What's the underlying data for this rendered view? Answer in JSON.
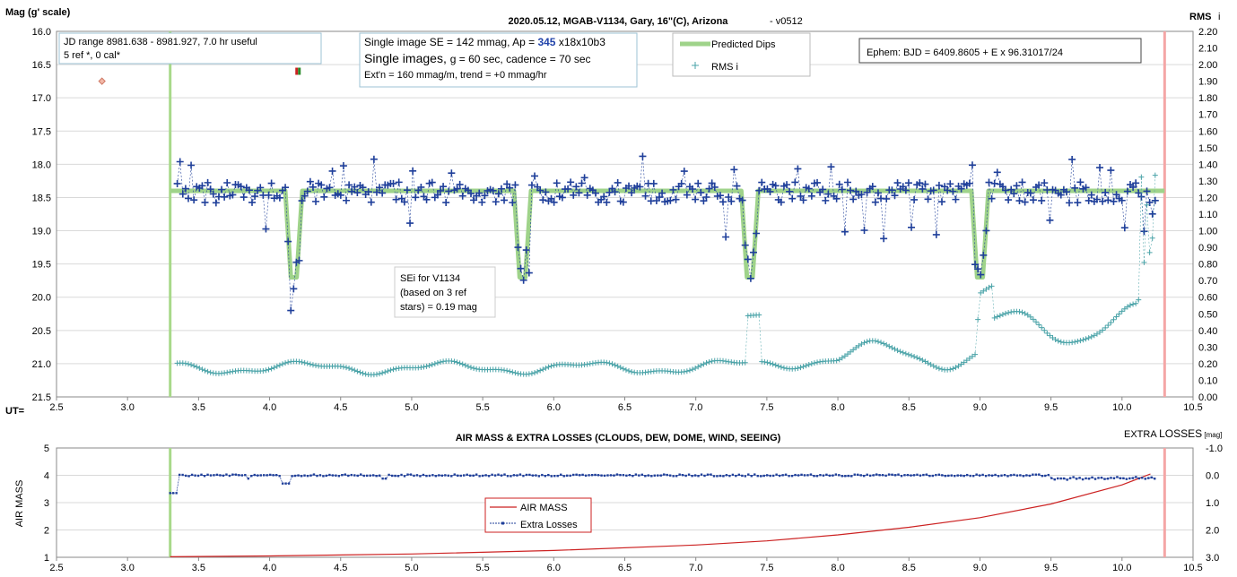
{
  "chart_data": [
    {
      "type": "scatter",
      "title": "2020.05.12, MGAB-V1134, Gary, 16\"(C), Arizona",
      "title_suffix": "- v0512",
      "ylabel": "Mag (g' scale)",
      "y2label": "RMS",
      "y2label_sub": "i",
      "xlabel": "UT=",
      "xlim": [
        2.5,
        10.5
      ],
      "ylim": [
        16.0,
        21.5
      ],
      "y_inverted": true,
      "y2lim": [
        0.0,
        2.2
      ],
      "x_ticks": [
        "2.5",
        "3.0",
        "3.5",
        "4.0",
        "4.5",
        "5.0",
        "5.5",
        "6.0",
        "6.5",
        "7.0",
        "7.5",
        "8.0",
        "8.5",
        "9.0",
        "9.5",
        "10.0",
        "10.5"
      ],
      "y_ticks": [
        "16.0",
        "16.5",
        "17.0",
        "17.5",
        "18.0",
        "18.5",
        "19.0",
        "19.5",
        "20.0",
        "20.5",
        "21.0",
        "21.5"
      ],
      "y2_ticks": [
        "2.20",
        "2.10",
        "2.00",
        "1.90",
        "1.80",
        "1.70",
        "1.60",
        "1.50",
        "1.40",
        "1.30",
        "1.20",
        "1.10",
        "1.00",
        "0.90",
        "0.80",
        "0.70",
        "0.60",
        "0.50",
        "0.40",
        "0.30",
        "0.20",
        "0.10",
        "0.00"
      ],
      "grid": "horizontal",
      "annotations": {
        "jd_box": [
          "JD range 8981.638 - 8981.927, 7.0 hr useful",
          "5 ref *, 0 cal*"
        ],
        "se_box_line1_pre": "Single image SE = 142 mmag, Ap = ",
        "se_box_line1_ap": "345",
        "se_box_line1_post": " x18x10b3",
        "se_box_line2_pre": "Single images, ",
        "se_box_line2_post": "g = 60 sec, cadence = 70 sec",
        "se_box_line3": "Ext'n = 160 mmag/m, trend = +0 mmag/hr",
        "sei_box": [
          "SEi for V1134",
          "(based on 3 ref",
          "stars) = 0.19 mag"
        ],
        "ephem_box": "Ephem: BJD = 6409.8605 + E x 96.31017/24"
      },
      "legend": {
        "placement": "top-center",
        "entries": [
          "Predicted Dips",
          "RMS i"
        ]
      },
      "markers": {
        "start_ut": 3.3,
        "end_ut": 10.3
      },
      "predicted_dips": {
        "baseline": 18.4,
        "depth_to": 19.7,
        "centers": [
          4.17,
          5.78,
          7.38,
          9.0
        ]
      },
      "series_note": "Dark blue + = V1134 magnitudes; light teal + = RMS i (right axis)",
      "colors": {
        "mag": "#1f3f9a",
        "rms": "#4aa3a8",
        "pred": "#9fd38a",
        "start": "#a8d98a",
        "end": "#f4a6a6"
      }
    },
    {
      "type": "line",
      "title": "AIR MASS & EXTRA LOSSES (CLOUDS, DEW, DOME, WIND, SEEING)",
      "ylabel": "AIR MASS",
      "y2label_pre": "EXTRA ",
      "y2label_main": "LOSSES",
      "y2label_sub": "[mag]",
      "xlim": [
        2.5,
        10.5
      ],
      "ylim": [
        1,
        5
      ],
      "y2lim": [
        -1.0,
        3.0
      ],
      "y2_inverted": true,
      "x_ticks": [
        "2.5",
        "3.0",
        "3.5",
        "4.0",
        "4.5",
        "5.0",
        "5.5",
        "6.0",
        "6.5",
        "7.0",
        "7.5",
        "8.0",
        "8.5",
        "9.0",
        "9.5",
        "10.0",
        "10.5"
      ],
      "y_ticks": [
        "1",
        "2",
        "3",
        "4",
        "5"
      ],
      "y2_ticks": [
        "-1.0",
        "0.0",
        "1.0",
        "2.0",
        "3.0"
      ],
      "series": [
        {
          "name": "AIR MASS",
          "x": [
            3.3,
            4.0,
            5.0,
            6.0,
            7.0,
            7.5,
            8.0,
            8.5,
            9.0,
            9.5,
            10.0,
            10.2
          ],
          "y": [
            1.02,
            1.05,
            1.12,
            1.25,
            1.45,
            1.6,
            1.82,
            2.1,
            2.45,
            2.95,
            3.65,
            4.05
          ]
        },
        {
          "name": "Extra Losses",
          "note": "mostly near 0.0 mag, dip ~0.3 at 4.12"
        }
      ],
      "legend": {
        "placement": "bottom-center",
        "entries": [
          "AIR MASS",
          "Extra Losses"
        ]
      },
      "colors": {
        "air": "#cc2222",
        "loss": "#1f3f9a"
      }
    }
  ]
}
